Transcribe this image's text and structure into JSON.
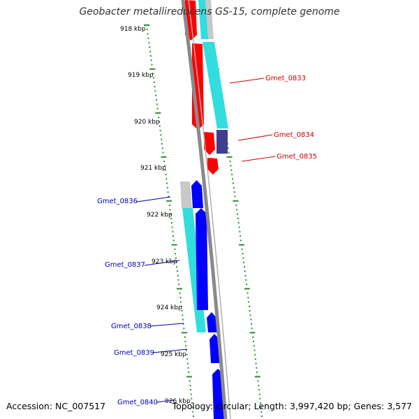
{
  "title": "Geobacter metallireducens GS-15, complete genome",
  "footer": {
    "accession": "Accession: NC_007517",
    "summary": "Topology: circular; Length: 3,997,420 bp; Genes: 3,577"
  },
  "colors": {
    "backbone": "#8a8a8a",
    "ruler_tick": "#2e8b2e",
    "forward_gene": "#ff0000",
    "forward_gene_dark": "#3f3f8f",
    "reverse_gene": "#0000ff",
    "cds_cyan": "#33dddd",
    "cds_gray": "#c8c8c8",
    "forward_label": "#cc0000",
    "reverse_label": "#0000aa"
  },
  "ruler": {
    "ticks": [
      {
        "label": "918 kbp"
      },
      {
        "label": "919 kbp"
      },
      {
        "label": "920 kbp"
      },
      {
        "label": "921 kbp"
      },
      {
        "label": "922 kbp"
      },
      {
        "label": "923 kbp"
      },
      {
        "label": "924 kbp"
      },
      {
        "label": "925 kbp"
      },
      {
        "label": "926 kbp"
      }
    ]
  },
  "genes": {
    "forward": [
      {
        "name": "Gmet_0833"
      },
      {
        "name": "Gmet_0834"
      },
      {
        "name": "Gmet_0835"
      }
    ],
    "reverse": [
      {
        "name": "Gmet_0836"
      },
      {
        "name": "Gmet_0837"
      },
      {
        "name": "Gmet_0838"
      },
      {
        "name": "Gmet_0839"
      },
      {
        "name": "Gmet_0840"
      }
    ]
  }
}
